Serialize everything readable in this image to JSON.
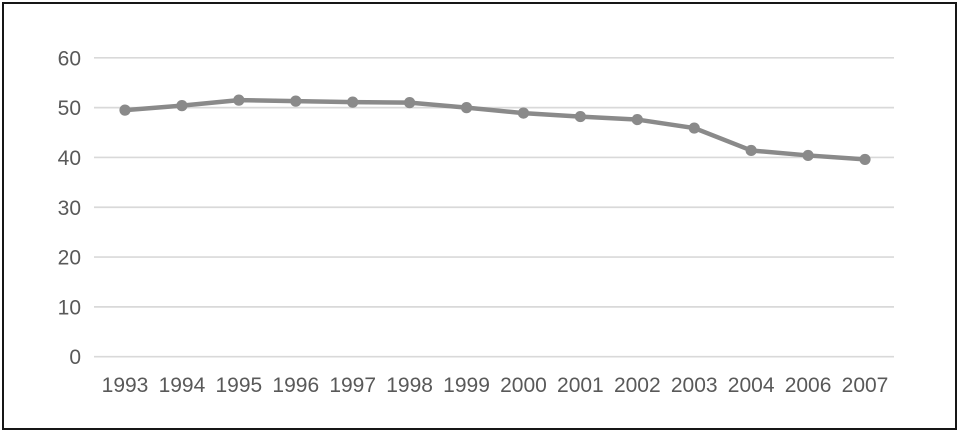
{
  "chart_data": {
    "type": "line",
    "title": "",
    "xlabel": "",
    "ylabel": "",
    "categories": [
      "1993",
      "1994",
      "1995",
      "1996",
      "1997",
      "1998",
      "1999",
      "2000",
      "2001",
      "2002",
      "2003",
      "2004",
      "2006",
      "2007"
    ],
    "series": [
      {
        "name": "series-1",
        "values": [
          49.5,
          50.4,
          51.5,
          51.3,
          51.1,
          51.0,
          50.0,
          48.9,
          48.2,
          47.6,
          45.9,
          41.4,
          40.4,
          39.6
        ]
      }
    ],
    "y_ticks": [
      0,
      10,
      20,
      30,
      40,
      50,
      60
    ],
    "ylim": [
      0,
      63
    ],
    "grid": "horizontal-only",
    "legend_position": "none",
    "marker": "circle",
    "colors": {
      "line": "#8a8a8a",
      "marker": "#8a8a8a",
      "gridline": "#d9d9d9",
      "axis_text": "#595959",
      "frame_border": "#161616",
      "background": "#ffffff"
    }
  }
}
